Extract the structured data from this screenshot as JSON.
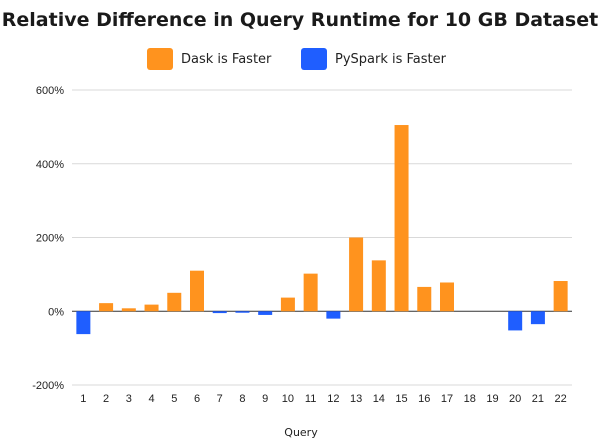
{
  "chart_data": {
    "type": "bar",
    "title": "Relative Difference in Query Runtime for 10 GB Dataset",
    "xlabel": "Query",
    "ylabel": "",
    "ylim": [
      -200,
      600
    ],
    "yticks": [
      600,
      400,
      200,
      0,
      -200
    ],
    "ytick_labels": [
      "600%",
      "400%",
      "200%",
      "0%",
      "-200%"
    ],
    "categories": [
      "1",
      "2",
      "3",
      "4",
      "5",
      "6",
      "7",
      "8",
      "9",
      "10",
      "11",
      "12",
      "13",
      "14",
      "15",
      "16",
      "17",
      "18",
      "19",
      "20",
      "21",
      "22"
    ],
    "values": [
      -62,
      22,
      8,
      18,
      50,
      110,
      -5,
      -4,
      -10,
      37,
      102,
      -20,
      200,
      138,
      505,
      66,
      78,
      0,
      0,
      -52,
      -35,
      82
    ],
    "grid": true,
    "legend_position": "top",
    "legend": [
      {
        "name": "Dask is Faster",
        "color": "#FF931E"
      },
      {
        "name": "PySpark is Faster",
        "color": "#1F5EFF"
      }
    ]
  }
}
